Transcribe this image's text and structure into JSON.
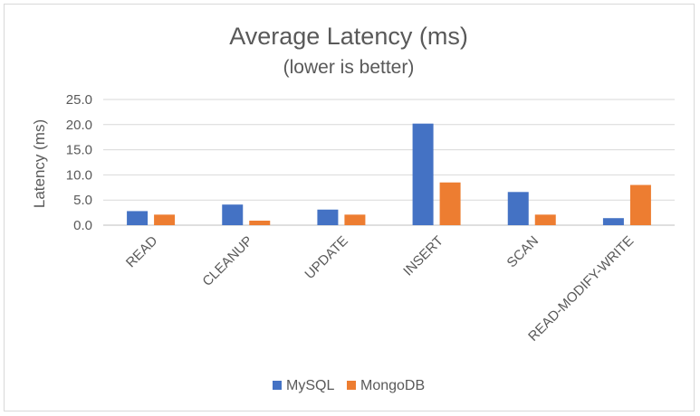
{
  "chart_data": {
    "type": "bar",
    "title": "Average Latency (ms)",
    "subtitle": "(lower is better)",
    "xlabel": "",
    "ylabel": "Latency (ms)",
    "ylim": [
      0,
      25
    ],
    "yticks": [
      "0.0",
      "5.0",
      "10.0",
      "15.0",
      "20.0",
      "25.0"
    ],
    "categories": [
      "READ",
      "CLEANUP",
      "UPDATE",
      "INSERT",
      "SCAN",
      "READ-MODIFY-WRITE"
    ],
    "series": [
      {
        "name": "MySQL",
        "color": "#4472c4",
        "values": [
          2.8,
          4.1,
          3.1,
          20.2,
          6.6,
          1.4
        ]
      },
      {
        "name": "MongoDB",
        "color": "#ed7d31",
        "values": [
          2.1,
          0.9,
          2.1,
          8.5,
          2.1,
          8.0
        ]
      }
    ],
    "grid": true,
    "legend": "bottom"
  }
}
